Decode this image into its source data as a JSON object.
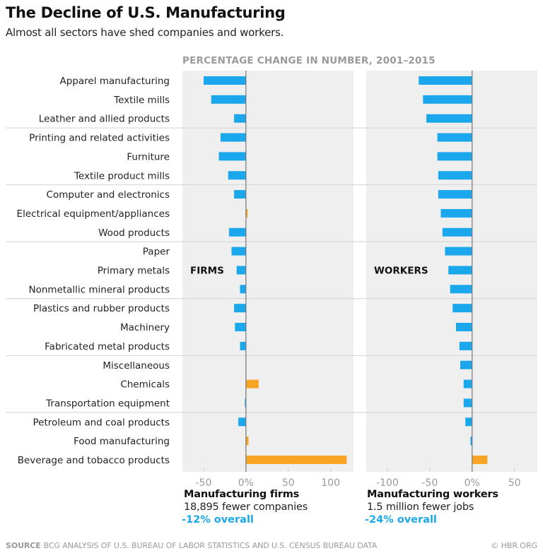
{
  "header": {
    "title": "The Decline of U.S. Manufacturing",
    "subtitle": "Almost all sectors have shed companies and workers."
  },
  "colors": {
    "negative": "#1aa7ec",
    "positive": "#f8a425",
    "panel_bg": "#efefef",
    "overall_text": "#1aa7ec"
  },
  "chart_data": {
    "type": "bar",
    "orientation": "horizontal",
    "title": "PERCENTAGE CHANGE IN NUMBER, 2001–2015",
    "categories": [
      "Apparel manufacturing",
      "Textile mills",
      "Leather and allied products",
      "Printing and related activities",
      "Furniture",
      "Textile product mills",
      "Computer and electronics",
      "Electrical equipment/appliances",
      "Wood products",
      "Paper",
      "Primary metals",
      "Nonmetallic mineral products",
      "Plastics and rubber products",
      "Machinery",
      "Fabricated metal products",
      "Miscellaneous",
      "Chemicals",
      "Transportation equipment",
      "Petroleum and coal products",
      "Food manufacturing",
      "Beverage and tobacco products"
    ],
    "group_size": 3,
    "series": [
      {
        "name": "FIRMS",
        "values": [
          -50,
          -41,
          -14,
          -30,
          -32,
          -21,
          -14,
          2,
          -20,
          -17,
          -11,
          -7,
          -14,
          -13,
          -7,
          0,
          15,
          -1,
          -9,
          3,
          119
        ],
        "xlim": [
          -75,
          127
        ],
        "ticks": [
          -50,
          0,
          50,
          100
        ],
        "tick_labels": [
          "-50",
          "0%",
          "50",
          "100"
        ],
        "summary": {
          "heading": "Manufacturing firms",
          "detail": "18,895 fewer companies",
          "overall": "-12% overall"
        }
      },
      {
        "name": "WORKERS",
        "values": [
          -63,
          -58,
          -54,
          -41,
          -41,
          -40,
          -40,
          -37,
          -35,
          -32,
          -28,
          -26,
          -23,
          -19,
          -15,
          -14,
          -10,
          -10,
          -8,
          -2,
          18
        ],
        "xlim": [
          -125,
          77
        ],
        "ticks": [
          -100,
          -50,
          0,
          50
        ],
        "tick_labels": [
          "-100",
          "-50",
          "0%",
          "50"
        ],
        "summary": {
          "heading": "Manufacturing workers",
          "detail": "1.5 million fewer jobs",
          "overall": "-24% overall"
        }
      }
    ]
  },
  "footer": {
    "source_label": "SOURCE",
    "source_text": "BCG ANALYSIS OF U.S. BUREAU OF LABOR STATISTICS AND U.S. CENSUS BUREAU DATA",
    "credit": "© HBR.ORG"
  }
}
